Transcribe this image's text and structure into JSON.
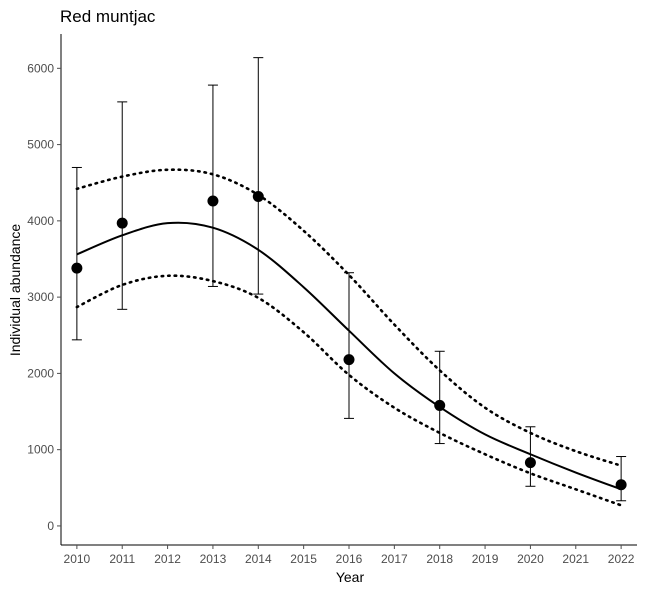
{
  "chart_data": {
    "type": "scatter",
    "title": "Red muntjac",
    "xlabel": "Year",
    "ylabel": "Individual abundance",
    "xlim": [
      2009.65,
      2022.35
    ],
    "ylim": [
      -250,
      6450
    ],
    "x_ticks": [
      2010,
      2011,
      2012,
      2013,
      2014,
      2015,
      2016,
      2017,
      2018,
      2019,
      2020,
      2021,
      2022
    ],
    "y_ticks": [
      0,
      1000,
      2000,
      3000,
      4000,
      5000,
      6000
    ],
    "grid": false,
    "legend": "none",
    "colors": {
      "points": "#000000",
      "lines": "#000000",
      "axis": "#000000",
      "tick_text": "#4d4d4d"
    },
    "points": [
      {
        "x": 2010,
        "y": 3380,
        "lower": 2440,
        "upper": 4700
      },
      {
        "x": 2011,
        "y": 3970,
        "lower": 2840,
        "upper": 5560
      },
      {
        "x": 2013,
        "y": 4260,
        "lower": 3140,
        "upper": 5780
      },
      {
        "x": 2014,
        "y": 4320,
        "lower": 3040,
        "upper": 6140
      },
      {
        "x": 2016,
        "y": 2180,
        "lower": 1410,
        "upper": 3320
      },
      {
        "x": 2018,
        "y": 1580,
        "lower": 1080,
        "upper": 2290
      },
      {
        "x": 2020,
        "y": 830,
        "lower": 520,
        "upper": 1300
      },
      {
        "x": 2022,
        "y": 540,
        "lower": 330,
        "upper": 910
      }
    ],
    "series": [
      {
        "style": "solid",
        "x": [
          2010,
          2011,
          2012,
          2013,
          2014,
          2015,
          2016,
          2017,
          2018,
          2019,
          2020,
          2021,
          2022
        ],
        "values": [
          3560,
          3810,
          3970,
          3910,
          3620,
          3130,
          2560,
          2000,
          1560,
          1200,
          940,
          700,
          480
        ]
      },
      {
        "style": "dotted",
        "x": [
          2010,
          2011,
          2012,
          2013,
          2014,
          2015,
          2016,
          2017,
          2018,
          2019,
          2020,
          2021,
          2022
        ],
        "values": [
          4420,
          4580,
          4670,
          4610,
          4340,
          3870,
          3290,
          2640,
          2040,
          1550,
          1220,
          980,
          790
        ]
      },
      {
        "style": "dotted",
        "x": [
          2010,
          2011,
          2012,
          2013,
          2014,
          2015,
          2016,
          2017,
          2018,
          2019,
          2020,
          2021,
          2022
        ],
        "values": [
          2870,
          3160,
          3280,
          3210,
          2990,
          2540,
          1980,
          1550,
          1220,
          940,
          690,
          480,
          270
        ]
      }
    ]
  }
}
